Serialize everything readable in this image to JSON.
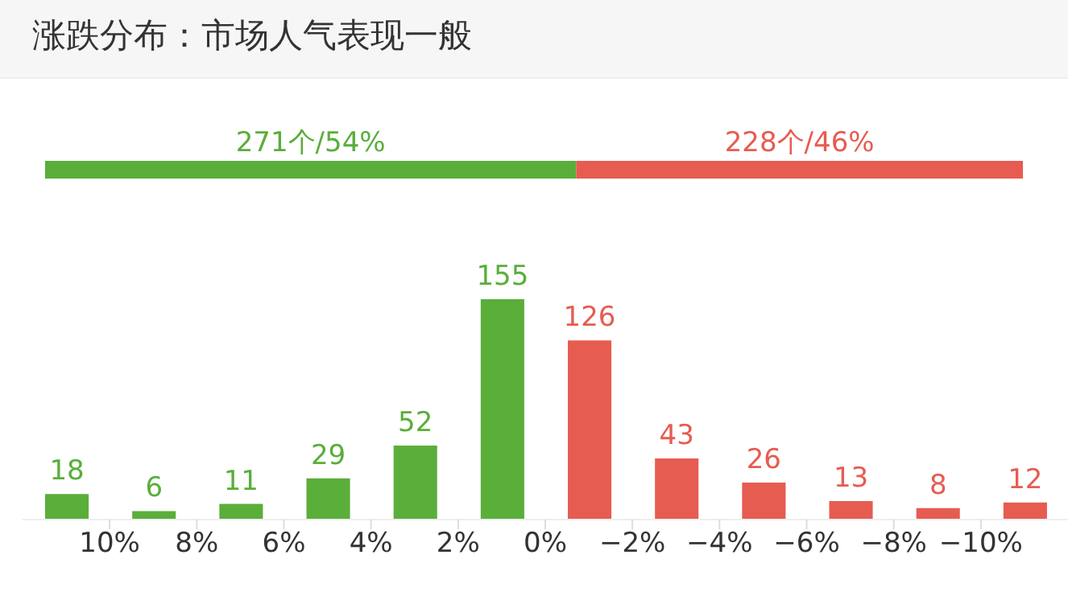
{
  "chart_data": [
    {
      "type": "bar",
      "title": "涨跌分布：市场人气表现一般",
      "orientation": "horizontal",
      "stacked": true,
      "categories": [
        null
      ],
      "tick_labels": false,
      "series": [
        {
          "color": "#5aae3a",
          "values": [
            271
          ],
          "value_labels": [
            "271个/54%"
          ]
        },
        {
          "color": "#e65c51",
          "values": [
            228
          ],
          "value_labels": [
            "228个/46%"
          ]
        }
      ]
    },
    {
      "type": "bar",
      "x": [
        11,
        9,
        7,
        5,
        3,
        1,
        -1,
        -3,
        -5,
        -7,
        -9,
        -11
      ],
      "values": [
        18,
        6,
        11,
        29,
        52,
        155,
        126,
        43,
        26,
        13,
        8,
        12
      ],
      "colors": [
        "#5aae3a",
        "#5aae3a",
        "#5aae3a",
        "#5aae3a",
        "#5aae3a",
        "#5aae3a",
        "#e65c51",
        "#e65c51",
        "#e65c51",
        "#e65c51",
        "#e65c51",
        "#e65c51"
      ],
      "xlim": [
        12,
        -12
      ],
      "xticks": [
        {
          "value": 10,
          "label": "10%"
        },
        {
          "value": 8,
          "label": "8%"
        },
        {
          "value": 6,
          "label": "6%"
        },
        {
          "value": 4,
          "label": "4%"
        },
        {
          "value": 2,
          "label": "2%"
        },
        {
          "value": 0,
          "label": "0%"
        },
        {
          "value": -2,
          "label": "−2%"
        },
        {
          "value": -4,
          "label": "−4%"
        },
        {
          "value": -6,
          "label": "−6%"
        },
        {
          "value": -8,
          "label": "−8%"
        },
        {
          "value": -10,
          "label": "−10%"
        }
      ],
      "data_labels": true,
      "tick_labels": "x"
    }
  ]
}
